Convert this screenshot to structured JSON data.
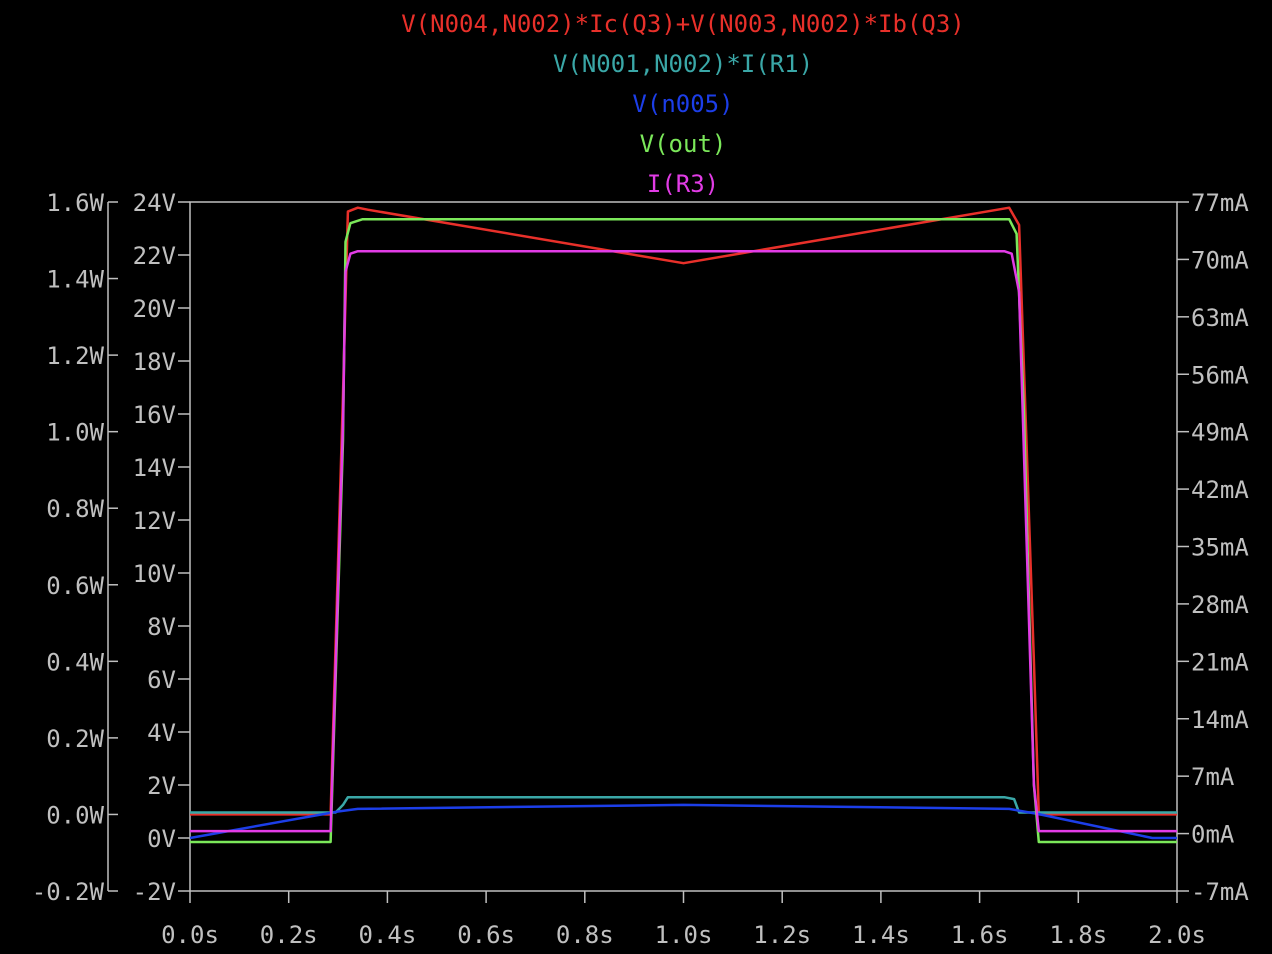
{
  "chart_data": {
    "type": "line",
    "legend_placement": "top-center",
    "background": "#000000",
    "grid": false,
    "x_axis": {
      "label": "",
      "range": [
        0.0,
        2.0
      ],
      "unit": "s",
      "ticks": [
        "0.0s",
        "0.2s",
        "0.4s",
        "0.6s",
        "0.8s",
        "1.0s",
        "1.2s",
        "1.4s",
        "1.6s",
        "1.8s",
        "2.0s"
      ],
      "tick_values": [
        0.0,
        0.2,
        0.4,
        0.6,
        0.8,
        1.0,
        1.2,
        1.4,
        1.6,
        1.8,
        2.0
      ]
    },
    "y_axes": {
      "power": {
        "unit": "W",
        "range": [
          -0.2,
          1.6
        ],
        "ticks": [
          "-0.2W",
          "0.0W",
          "0.2W",
          "0.4W",
          "0.6W",
          "0.8W",
          "1.0W",
          "1.2W",
          "1.4W",
          "1.6W"
        ],
        "tick_values": [
          -0.2,
          0.0,
          0.2,
          0.4,
          0.6,
          0.8,
          1.0,
          1.2,
          1.4,
          1.6
        ]
      },
      "voltage": {
        "unit": "V",
        "range": [
          -2,
          24
        ],
        "ticks": [
          "-2V",
          "0V",
          "2V",
          "4V",
          "6V",
          "8V",
          "10V",
          "12V",
          "14V",
          "16V",
          "18V",
          "20V",
          "22V",
          "24V"
        ],
        "tick_values": [
          -2,
          0,
          2,
          4,
          6,
          8,
          10,
          12,
          14,
          16,
          18,
          20,
          22,
          24
        ]
      },
      "current": {
        "unit": "mA",
        "range": [
          -7,
          77
        ],
        "ticks": [
          "-7mA",
          "0mA",
          "7mA",
          "14mA",
          "21mA",
          "28mA",
          "35mA",
          "42mA",
          "49mA",
          "56mA",
          "63mA",
          "70mA",
          "77mA"
        ],
        "tick_values": [
          -7,
          0,
          7,
          14,
          21,
          28,
          35,
          42,
          49,
          56,
          63,
          70,
          77
        ]
      }
    },
    "series": [
      {
        "name": "V(N004,N002)*Ic(Q3)+V(N003,N002)*Ib(Q3)",
        "color": "#e8302a",
        "axis": "power",
        "x": [
          0.0,
          0.285,
          0.31,
          0.32,
          0.34,
          0.36,
          1.0,
          1.66,
          1.68,
          1.71,
          1.72,
          2.0
        ],
        "y": [
          0.0,
          0.0,
          1.1,
          1.575,
          1.585,
          1.58,
          1.44,
          1.585,
          1.54,
          0.4,
          0.0,
          0.0
        ]
      },
      {
        "name": "V(N001,N002)*I(R1)",
        "color": "#3aa7a7",
        "axis": "power",
        "x": [
          0.0,
          0.295,
          0.31,
          0.32,
          1.65,
          1.67,
          1.68,
          2.0
        ],
        "y": [
          0.005,
          0.005,
          0.025,
          0.045,
          0.045,
          0.04,
          0.005,
          0.005
        ]
      },
      {
        "name": "V(n005)",
        "color": "#1c3ee8",
        "axis": "voltage",
        "x": [
          0.0,
          0.3,
          0.34,
          1.0,
          1.66,
          1.72,
          1.95,
          2.0
        ],
        "y": [
          0.0,
          1.0,
          1.1,
          1.25,
          1.1,
          0.9,
          0.0,
          0.0
        ]
      },
      {
        "name": "V(out)",
        "color": "#7be85a",
        "axis": "voltage",
        "x": [
          0.0,
          0.285,
          0.31,
          0.315,
          0.325,
          0.35,
          1.66,
          1.675,
          1.69,
          1.71,
          1.72,
          2.0
        ],
        "y": [
          -0.15,
          -0.15,
          15.0,
          22.5,
          23.2,
          23.35,
          23.35,
          22.8,
          16.0,
          2.0,
          -0.15,
          -0.15
        ]
      },
      {
        "name": "I(R3)",
        "color": "#e23ce6",
        "axis": "current",
        "x": [
          0.0,
          0.285,
          0.31,
          0.315,
          0.325,
          0.34,
          1.65,
          1.665,
          1.68,
          1.71,
          1.72,
          2.0
        ],
        "y": [
          0.3,
          0.3,
          50.0,
          68.5,
          70.7,
          71.0,
          71.0,
          70.7,
          66.0,
          6.0,
          0.3,
          0.3
        ]
      }
    ]
  }
}
